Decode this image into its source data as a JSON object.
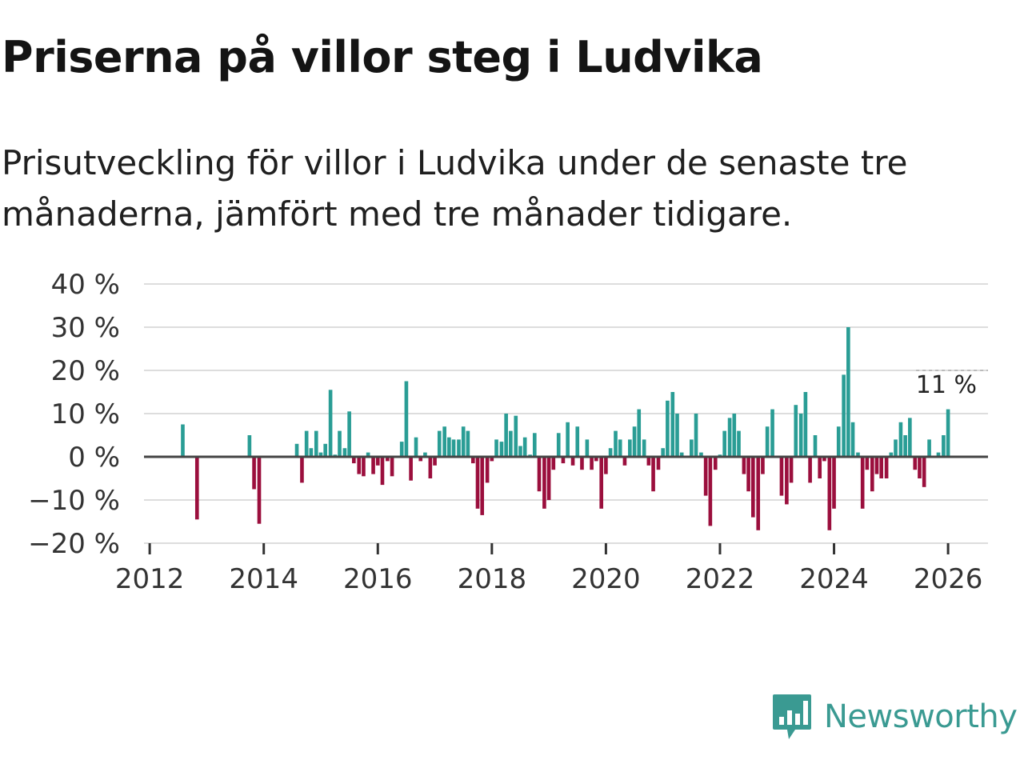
{
  "title": "Priserna på villor steg i Ludvika",
  "subtitle": "Prisutveckling för villor i Ludvika under de senaste tre månaderna, jämfört med tre månader tidigare.",
  "brand": "Newsworthy",
  "colors": {
    "positive": "#2a9d95",
    "negative": "#9b0f3d",
    "grid": "#dddddd",
    "zero": "#444444",
    "brand": "#3a9a92"
  },
  "chart_data": {
    "type": "bar",
    "title": "Priserna på villor steg i Ludvika",
    "xlabel": "",
    "ylabel": "",
    "x_ticks": [
      "2012",
      "2014",
      "2016",
      "2018",
      "2020",
      "2022",
      "2024",
      "2026"
    ],
    "y_ticks": [
      "40 %",
      "30 %",
      "20 %",
      "10 %",
      "0 %",
      "−10 %",
      "−20 %"
    ],
    "y_tick_values": [
      40,
      30,
      20,
      10,
      0,
      -10,
      -20
    ],
    "ylim": [
      -20,
      40
    ],
    "xlim": [
      2011.9,
      2026.7
    ],
    "unit": "%",
    "last_value_label": "11 %",
    "series": [
      {
        "name": "Prisutveckling",
        "points": [
          {
            "x": 2012.58,
            "y": 7.5
          },
          {
            "x": 2012.83,
            "y": -14.5
          },
          {
            "x": 2013.75,
            "y": 5
          },
          {
            "x": 2013.83,
            "y": -7.5
          },
          {
            "x": 2013.92,
            "y": -15.5
          },
          {
            "x": 2014.58,
            "y": 3
          },
          {
            "x": 2014.67,
            "y": -6
          },
          {
            "x": 2014.75,
            "y": 6
          },
          {
            "x": 2014.83,
            "y": 2
          },
          {
            "x": 2014.92,
            "y": 6
          },
          {
            "x": 2015.0,
            "y": 1
          },
          {
            "x": 2015.08,
            "y": 3
          },
          {
            "x": 2015.17,
            "y": 15.5
          },
          {
            "x": 2015.25,
            "y": 0.5
          },
          {
            "x": 2015.33,
            "y": 6
          },
          {
            "x": 2015.42,
            "y": 2
          },
          {
            "x": 2015.5,
            "y": 10.5
          },
          {
            "x": 2015.58,
            "y": -1.5
          },
          {
            "x": 2015.67,
            "y": -4
          },
          {
            "x": 2015.75,
            "y": -4.5
          },
          {
            "x": 2015.83,
            "y": 1
          },
          {
            "x": 2015.92,
            "y": -4
          },
          {
            "x": 2016.0,
            "y": -2
          },
          {
            "x": 2016.08,
            "y": -6.5
          },
          {
            "x": 2016.17,
            "y": -1
          },
          {
            "x": 2016.25,
            "y": -4.5
          },
          {
            "x": 2016.42,
            "y": 3.5
          },
          {
            "x": 2016.5,
            "y": 17.5
          },
          {
            "x": 2016.58,
            "y": -5.5
          },
          {
            "x": 2016.67,
            "y": 4.5
          },
          {
            "x": 2016.75,
            "y": -1
          },
          {
            "x": 2016.83,
            "y": 1
          },
          {
            "x": 2016.92,
            "y": -5
          },
          {
            "x": 2017.0,
            "y": -2
          },
          {
            "x": 2017.08,
            "y": 6
          },
          {
            "x": 2017.17,
            "y": 7
          },
          {
            "x": 2017.25,
            "y": 4.5
          },
          {
            "x": 2017.33,
            "y": 4
          },
          {
            "x": 2017.42,
            "y": 4
          },
          {
            "x": 2017.5,
            "y": 7
          },
          {
            "x": 2017.58,
            "y": 6
          },
          {
            "x": 2017.67,
            "y": -1.5
          },
          {
            "x": 2017.75,
            "y": -12
          },
          {
            "x": 2017.83,
            "y": -13.5
          },
          {
            "x": 2017.92,
            "y": -6
          },
          {
            "x": 2018.0,
            "y": -1
          },
          {
            "x": 2018.08,
            "y": 4
          },
          {
            "x": 2018.17,
            "y": 3.5
          },
          {
            "x": 2018.25,
            "y": 10
          },
          {
            "x": 2018.33,
            "y": 6
          },
          {
            "x": 2018.42,
            "y": 9.5
          },
          {
            "x": 2018.5,
            "y": 2.5
          },
          {
            "x": 2018.58,
            "y": 4.5
          },
          {
            "x": 2018.67,
            "y": 0.5
          },
          {
            "x": 2018.75,
            "y": 5.5
          },
          {
            "x": 2018.83,
            "y": -8
          },
          {
            "x": 2018.92,
            "y": -12
          },
          {
            "x": 2019.0,
            "y": -10
          },
          {
            "x": 2019.08,
            "y": -3
          },
          {
            "x": 2019.17,
            "y": 5.5
          },
          {
            "x": 2019.25,
            "y": -1.5
          },
          {
            "x": 2019.33,
            "y": 8
          },
          {
            "x": 2019.42,
            "y": -2
          },
          {
            "x": 2019.5,
            "y": 7
          },
          {
            "x": 2019.58,
            "y": -3
          },
          {
            "x": 2019.67,
            "y": 4
          },
          {
            "x": 2019.75,
            "y": -3
          },
          {
            "x": 2019.83,
            "y": -1
          },
          {
            "x": 2019.92,
            "y": -12
          },
          {
            "x": 2020.0,
            "y": -4
          },
          {
            "x": 2020.08,
            "y": 2
          },
          {
            "x": 2020.17,
            "y": 6
          },
          {
            "x": 2020.25,
            "y": 4
          },
          {
            "x": 2020.33,
            "y": -2
          },
          {
            "x": 2020.42,
            "y": 4
          },
          {
            "x": 2020.5,
            "y": 7
          },
          {
            "x": 2020.58,
            "y": 11
          },
          {
            "x": 2020.67,
            "y": 4
          },
          {
            "x": 2020.75,
            "y": -2
          },
          {
            "x": 2020.83,
            "y": -8
          },
          {
            "x": 2020.92,
            "y": -3
          },
          {
            "x": 2021.0,
            "y": 2
          },
          {
            "x": 2021.08,
            "y": 13
          },
          {
            "x": 2021.17,
            "y": 15
          },
          {
            "x": 2021.25,
            "y": 10
          },
          {
            "x": 2021.33,
            "y": 1
          },
          {
            "x": 2021.5,
            "y": 4
          },
          {
            "x": 2021.58,
            "y": 10
          },
          {
            "x": 2021.67,
            "y": 1
          },
          {
            "x": 2021.75,
            "y": -9
          },
          {
            "x": 2021.83,
            "y": -16
          },
          {
            "x": 2021.92,
            "y": -3
          },
          {
            "x": 2022.0,
            "y": 0.5
          },
          {
            "x": 2022.08,
            "y": 6
          },
          {
            "x": 2022.17,
            "y": 9
          },
          {
            "x": 2022.25,
            "y": 10
          },
          {
            "x": 2022.33,
            "y": 6
          },
          {
            "x": 2022.42,
            "y": -4
          },
          {
            "x": 2022.5,
            "y": -8
          },
          {
            "x": 2022.58,
            "y": -14
          },
          {
            "x": 2022.67,
            "y": -17
          },
          {
            "x": 2022.75,
            "y": -4
          },
          {
            "x": 2022.83,
            "y": 7
          },
          {
            "x": 2022.92,
            "y": 11
          },
          {
            "x": 2023.08,
            "y": -9
          },
          {
            "x": 2023.17,
            "y": -11
          },
          {
            "x": 2023.25,
            "y": -6
          },
          {
            "x": 2023.33,
            "y": 12
          },
          {
            "x": 2023.42,
            "y": 10
          },
          {
            "x": 2023.5,
            "y": 15
          },
          {
            "x": 2023.58,
            "y": -6
          },
          {
            "x": 2023.67,
            "y": 5
          },
          {
            "x": 2023.75,
            "y": -5
          },
          {
            "x": 2023.83,
            "y": -1
          },
          {
            "x": 2023.92,
            "y": -17
          },
          {
            "x": 2024.0,
            "y": -12
          },
          {
            "x": 2024.08,
            "y": 7
          },
          {
            "x": 2024.17,
            "y": 19
          },
          {
            "x": 2024.25,
            "y": 30
          },
          {
            "x": 2024.33,
            "y": 8
          },
          {
            "x": 2024.42,
            "y": 1
          },
          {
            "x": 2024.5,
            "y": -12
          },
          {
            "x": 2024.58,
            "y": -3
          },
          {
            "x": 2024.67,
            "y": -8
          },
          {
            "x": 2024.75,
            "y": -4
          },
          {
            "x": 2024.83,
            "y": -5
          },
          {
            "x": 2024.92,
            "y": -5
          },
          {
            "x": 2025.0,
            "y": 1
          },
          {
            "x": 2025.08,
            "y": 4
          },
          {
            "x": 2025.17,
            "y": 8
          },
          {
            "x": 2025.25,
            "y": 5
          },
          {
            "x": 2025.33,
            "y": 9
          },
          {
            "x": 2025.42,
            "y": -3
          },
          {
            "x": 2025.5,
            "y": -5
          },
          {
            "x": 2025.58,
            "y": -7
          },
          {
            "x": 2025.67,
            "y": 4
          },
          {
            "x": 2025.83,
            "y": 1
          },
          {
            "x": 2025.92,
            "y": 5
          },
          {
            "x": 2026.0,
            "y": 11
          }
        ]
      }
    ]
  }
}
